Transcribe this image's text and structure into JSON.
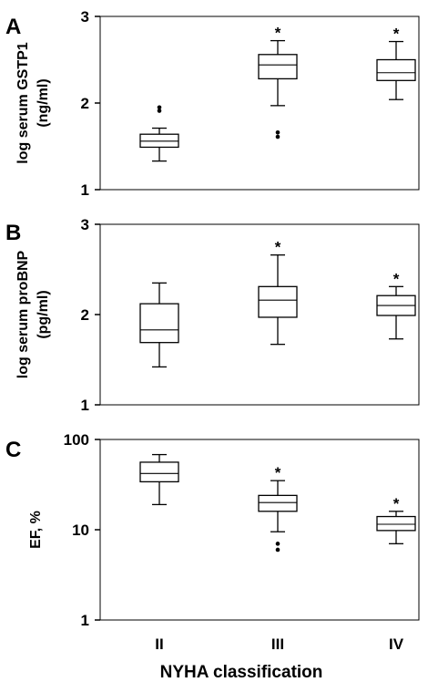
{
  "chart_data": [
    {
      "type": "box",
      "panel_letter": "A",
      "ylabel_lines": [
        "log serum GSTP1",
        "(ng/ml)"
      ],
      "ylim": [
        1,
        3
      ],
      "yticks": [
        1,
        2,
        3
      ],
      "ytick_labels": [
        "1",
        "2",
        "3"
      ],
      "y_scale": "linear",
      "categories": [
        "II",
        "III",
        "IV"
      ],
      "boxes": [
        {
          "category": "II",
          "whisker_low": 1.33,
          "q1": 1.49,
          "median": 1.56,
          "q3": 1.64,
          "whisker_high": 1.71,
          "outliers": [
            1.91,
            1.95
          ],
          "marker": ""
        },
        {
          "category": "III",
          "whisker_low": 1.97,
          "q1": 2.28,
          "median": 2.44,
          "q3": 2.56,
          "whisker_high": 2.72,
          "outliers": [
            1.61,
            1.66
          ],
          "marker": "*"
        },
        {
          "category": "IV",
          "whisker_low": 2.04,
          "q1": 2.26,
          "median": 2.35,
          "q3": 2.5,
          "whisker_high": 2.71,
          "outliers": [],
          "marker": "*"
        }
      ]
    },
    {
      "type": "box",
      "panel_letter": "B",
      "ylabel_lines": [
        "log serum proBNP",
        "(pg/ml)"
      ],
      "ylim": [
        1,
        3
      ],
      "yticks": [
        1,
        2,
        3
      ],
      "ytick_labels": [
        "1",
        "2",
        "3"
      ],
      "y_scale": "linear",
      "categories": [
        "II",
        "III",
        "IV"
      ],
      "boxes": [
        {
          "category": "II",
          "whisker_low": 1.42,
          "q1": 1.69,
          "median": 1.83,
          "q3": 2.12,
          "whisker_high": 2.35,
          "outliers": [],
          "marker": ""
        },
        {
          "category": "III",
          "whisker_low": 1.67,
          "q1": 1.97,
          "median": 2.16,
          "q3": 2.31,
          "whisker_high": 2.66,
          "outliers": [],
          "marker": "*"
        },
        {
          "category": "IV",
          "whisker_low": 1.73,
          "q1": 1.99,
          "median": 2.1,
          "q3": 2.21,
          "whisker_high": 2.31,
          "outliers": [],
          "marker": "*"
        }
      ]
    },
    {
      "type": "box",
      "panel_letter": "C",
      "ylabel_lines": [
        "EF, %"
      ],
      "ylim": [
        1,
        100
      ],
      "yticks": [
        1,
        10,
        100
      ],
      "ytick_labels": [
        "1",
        "10",
        "100"
      ],
      "y_scale": "log",
      "categories": [
        "II",
        "III",
        "IV"
      ],
      "boxes": [
        {
          "category": "II",
          "whisker_low": 19,
          "q1": 34,
          "median": 42,
          "q3": 56,
          "whisker_high": 68,
          "outliers": [],
          "marker": ""
        },
        {
          "category": "III",
          "whisker_low": 9.5,
          "q1": 16,
          "median": 20,
          "q3": 24,
          "whisker_high": 35,
          "outliers": [
            6,
            7
          ],
          "marker": "*"
        },
        {
          "category": "IV",
          "whisker_low": 7,
          "q1": 9.8,
          "median": 11.5,
          "q3": 14,
          "whisker_high": 16,
          "outliers": [],
          "marker": "*"
        }
      ]
    }
  ],
  "xlabel": "NYHA classification",
  "x_tick_labels": [
    "II",
    "III",
    "IV"
  ]
}
